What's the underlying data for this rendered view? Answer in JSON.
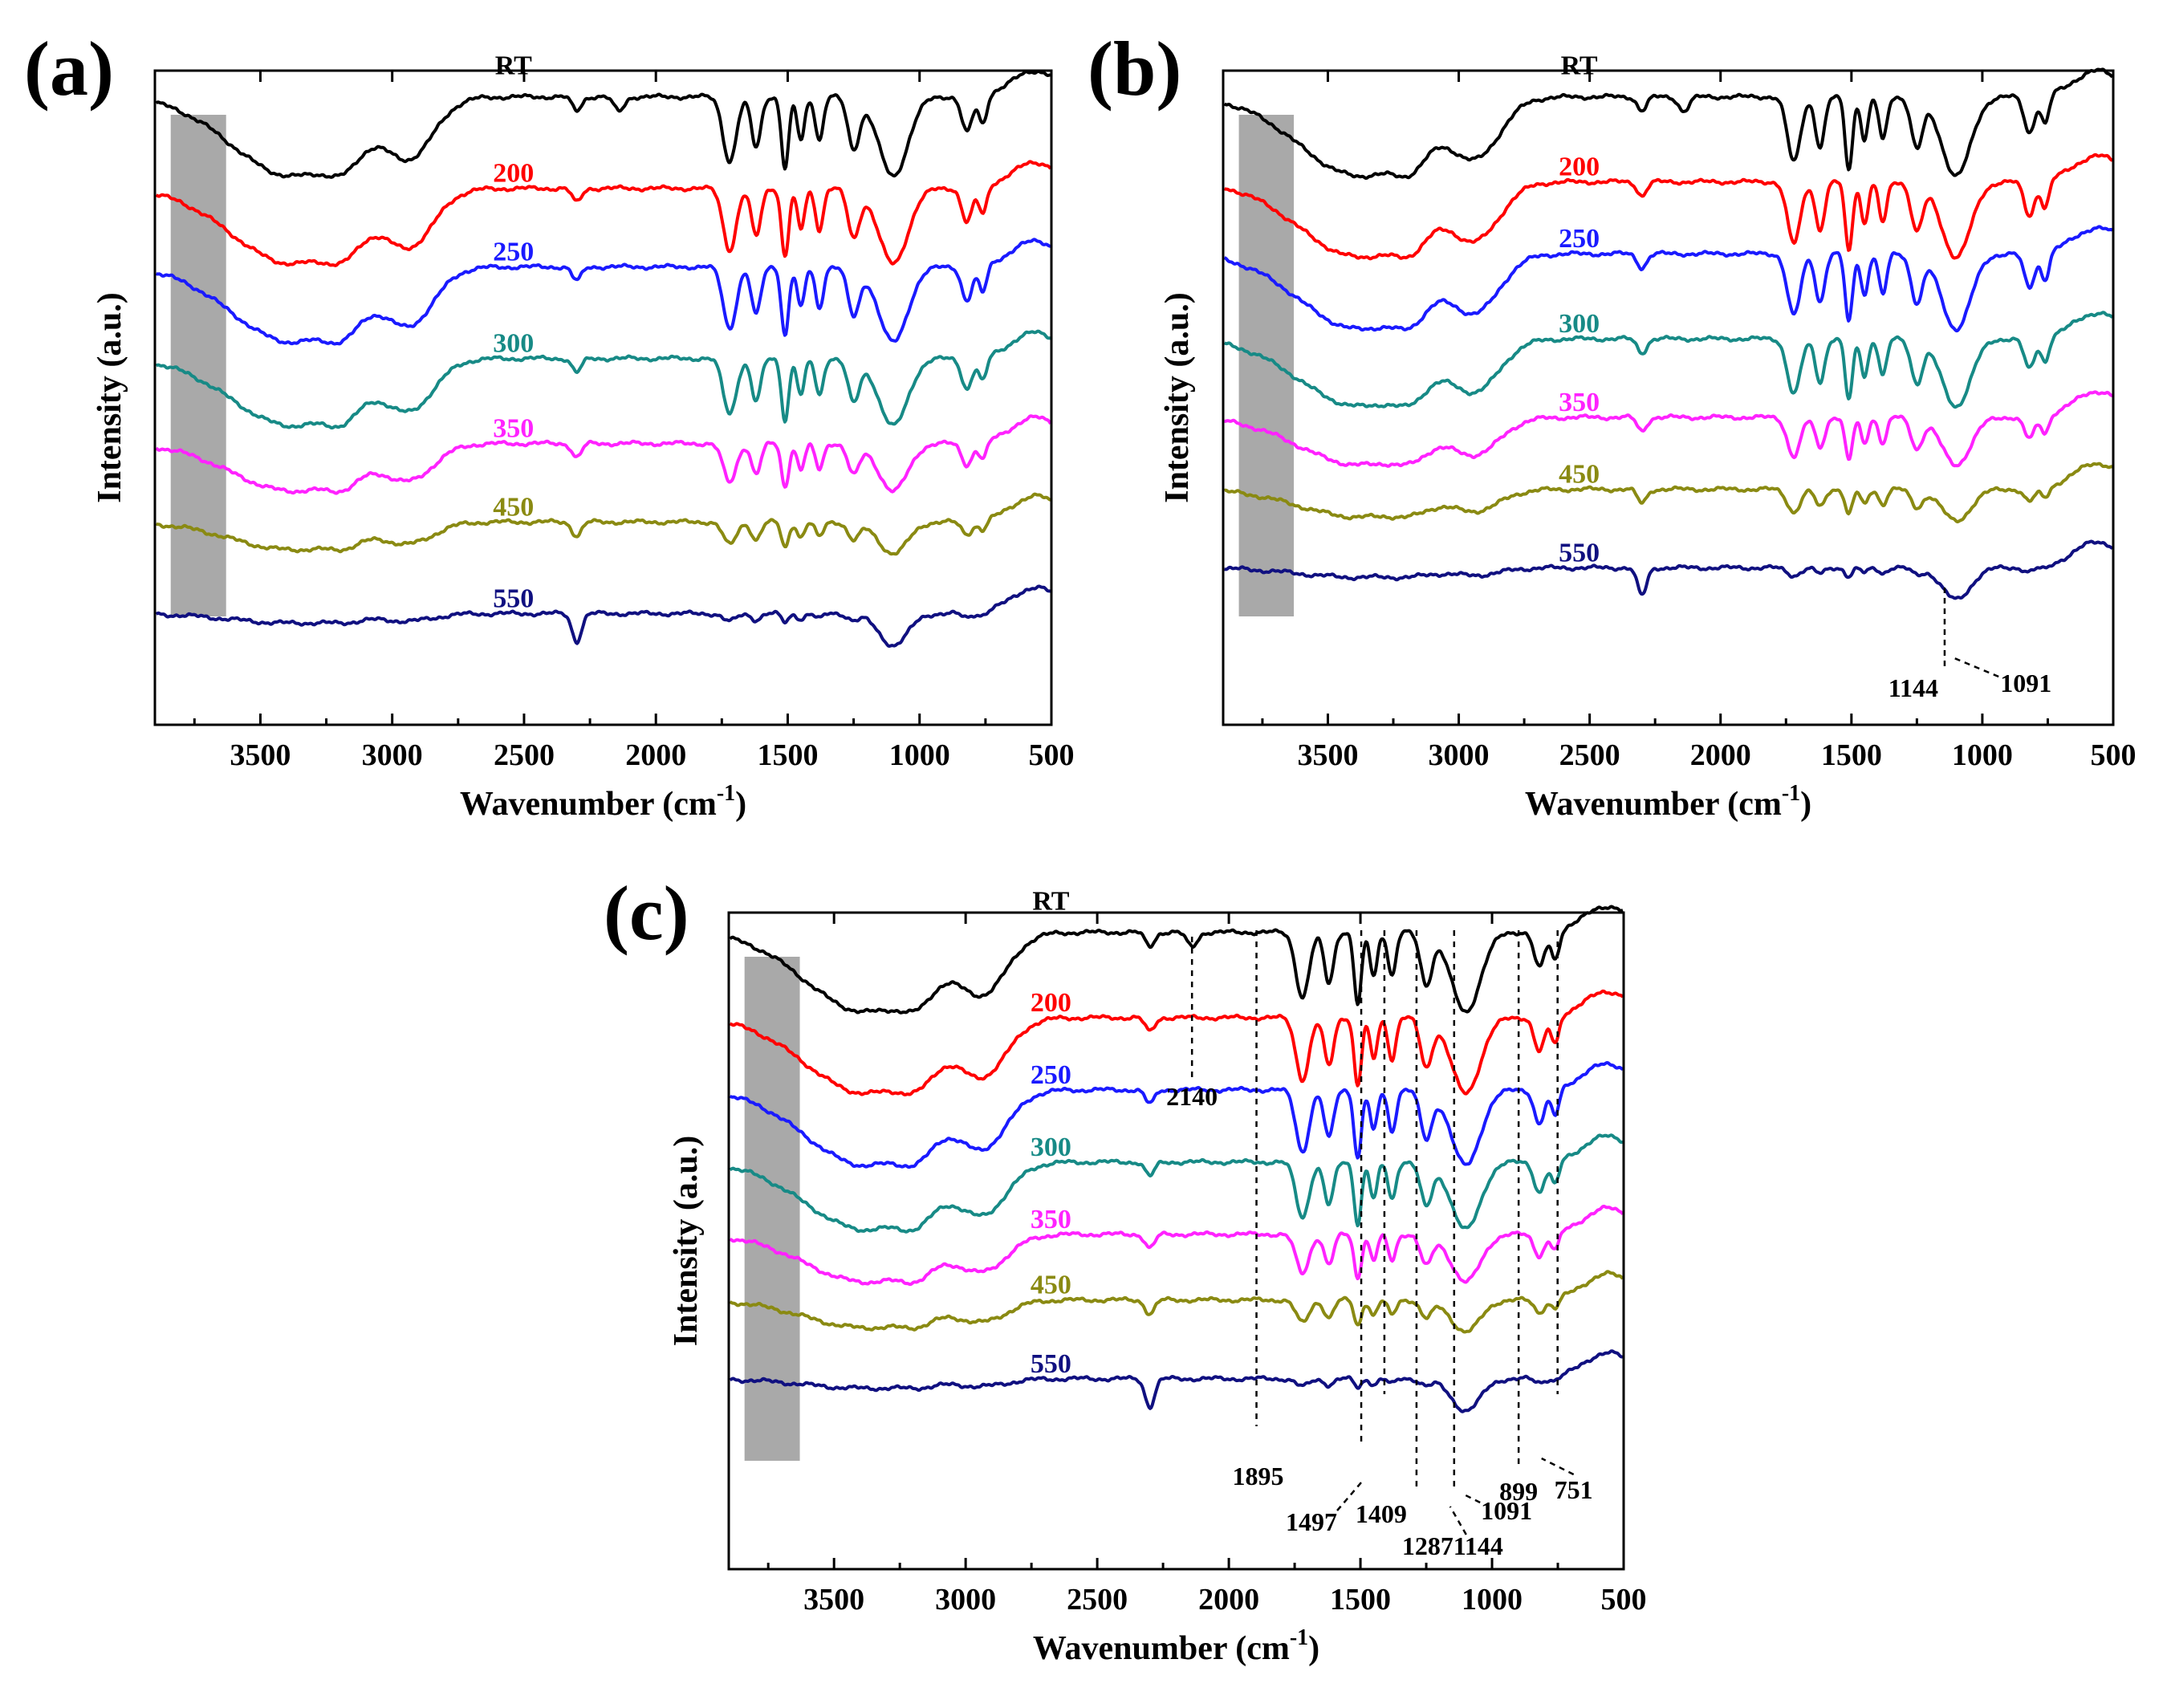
{
  "chart_data": [
    {
      "panel": "(a)",
      "type": "line",
      "xlabel": "Wavenumber (cm",
      "xlabel_sup": "-1",
      "xlabel_end": ")",
      "ylabel": "Intensity (a.u.)",
      "xlim": [
        3900,
        500
      ],
      "x_reversed": true,
      "xticks": [
        3500,
        3000,
        2500,
        2000,
        1500,
        1000,
        500
      ],
      "highlight_band": [
        3840,
        3630
      ],
      "series": [
        {
          "name": "RT",
          "color": "#000000",
          "offset": 0.96,
          "features": "rt"
        },
        {
          "name": "200",
          "color": "#ff0000",
          "offset": 0.82,
          "features": "mid"
        },
        {
          "name": "250",
          "color": "#1a1aff",
          "offset": 0.7,
          "features": "mid"
        },
        {
          "name": "300",
          "color": "#178a86",
          "offset": 0.56,
          "features": "mid2"
        },
        {
          "name": "350",
          "color": "#ff22ff",
          "offset": 0.43,
          "features": "weak"
        },
        {
          "name": "450",
          "color": "#8a8a12",
          "offset": 0.31,
          "features": "weaker"
        },
        {
          "name": "550",
          "color": "#101080",
          "offset": 0.17,
          "features": "flat"
        }
      ],
      "annotations": []
    },
    {
      "panel": "(b)",
      "type": "line",
      "xlabel": "Wavenumber (cm",
      "xlabel_sup": "-1",
      "xlabel_end": ")",
      "ylabel": "Intensity (a.u.)",
      "xlim": [
        3900,
        500
      ],
      "x_reversed": true,
      "xticks": [
        3500,
        3000,
        2500,
        2000,
        1500,
        1000,
        500
      ],
      "highlight_band": [
        3840,
        3630
      ],
      "series": [
        {
          "name": "RT",
          "color": "#000000",
          "offset": 0.96,
          "features": "rt"
        },
        {
          "name": "200",
          "color": "#ff0000",
          "offset": 0.83,
          "features": "mid"
        },
        {
          "name": "250",
          "color": "#1a1aff",
          "offset": 0.72,
          "features": "mid"
        },
        {
          "name": "300",
          "color": "#178a86",
          "offset": 0.59,
          "features": "mid2"
        },
        {
          "name": "350",
          "color": "#ff22ff",
          "offset": 0.47,
          "features": "weak"
        },
        {
          "name": "450",
          "color": "#8a8a12",
          "offset": 0.36,
          "features": "weaker"
        },
        {
          "name": "550",
          "color": "#101080",
          "offset": 0.24,
          "features": "flat"
        }
      ],
      "annotations": [
        {
          "label": "1144",
          "x": 1144
        },
        {
          "label": "1091",
          "x": 1091
        }
      ]
    },
    {
      "panel": "(c)",
      "type": "line",
      "xlabel": "Wavenumber (cm",
      "xlabel_sup": "-1",
      "xlabel_end": ")",
      "ylabel": "Intensity (a.u.)",
      "xlim": [
        3900,
        500
      ],
      "x_reversed": true,
      "xticks": [
        3500,
        3000,
        2500,
        2000,
        1500,
        1000,
        500
      ],
      "highlight_band": [
        3840,
        3630
      ],
      "series": [
        {
          "name": "RT",
          "color": "#000000",
          "offset": 0.97,
          "features": "rt"
        },
        {
          "name": "200",
          "color": "#ff0000",
          "offset": 0.84,
          "features": "mid"
        },
        {
          "name": "250",
          "color": "#1a1aff",
          "offset": 0.73,
          "features": "mid"
        },
        {
          "name": "300",
          "color": "#178a86",
          "offset": 0.62,
          "features": "mid2"
        },
        {
          "name": "350",
          "color": "#ff22ff",
          "offset": 0.51,
          "features": "weak"
        },
        {
          "name": "450",
          "color": "#8a8a12",
          "offset": 0.41,
          "features": "weaker"
        },
        {
          "name": "550",
          "color": "#101080",
          "offset": 0.29,
          "features": "flat"
        }
      ],
      "guides": [
        2140,
        1895,
        1497,
        1409,
        1287,
        1144,
        899,
        751
      ],
      "annotations": [
        {
          "label": "2140",
          "x": 2140
        },
        {
          "label": "1895",
          "x": 1895
        },
        {
          "label": "1497",
          "x": 1497
        },
        {
          "label": "1409",
          "x": 1409
        },
        {
          "label": "1287",
          "x": 1287
        },
        {
          "label": "1144",
          "x": 1144
        },
        {
          "label": "1091",
          "x": 1091
        },
        {
          "label": "899",
          "x": 899
        },
        {
          "label": "751",
          "x": 751
        }
      ]
    }
  ]
}
